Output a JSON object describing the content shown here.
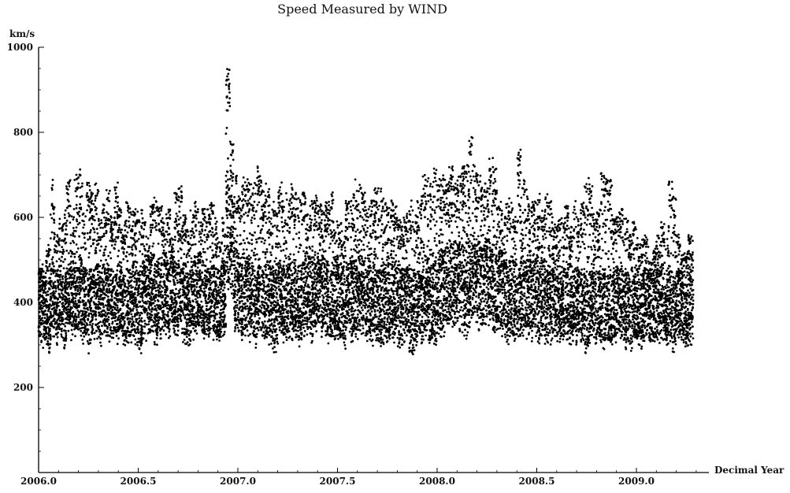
{
  "chart_data": {
    "type": "scatter",
    "title": "Speed Measured by WIND",
    "xlabel": "Decimal Year",
    "ylabel": "km/s",
    "xlim": [
      2006.0,
      2009.3
    ],
    "ylim": [
      0,
      1000
    ],
    "x_ticks": [
      "2006.0",
      "2006.5",
      "2007.0",
      "2007.5",
      "2008.0",
      "2008.5",
      "2009.0"
    ],
    "y_ticks": [
      "200",
      "400",
      "600",
      "800",
      "1000"
    ],
    "grid": false,
    "legend": "none",
    "marker_color": "#000000",
    "series": [
      {
        "x": [
          2006.0,
          2006.02,
          2006.04,
          2006.06,
          2006.08,
          2006.1,
          2006.12,
          2006.14,
          2006.16,
          2006.18,
          2006.2,
          2006.22,
          2006.24,
          2006.26,
          2006.28,
          2006.3,
          2006.32,
          2006.34,
          2006.36,
          2006.38,
          2006.4,
          2006.42,
          2006.44,
          2006.46,
          2006.48,
          2006.5,
          2006.52,
          2006.54,
          2006.56,
          2006.58,
          2006.6,
          2006.62,
          2006.64,
          2006.66,
          2006.68,
          2006.7,
          2006.72,
          2006.74,
          2006.76,
          2006.78,
          2006.8,
          2006.82,
          2006.84,
          2006.86,
          2006.88,
          2006.9,
          2006.92,
          2006.94,
          2006.96,
          2006.98,
          2007.0,
          2007.02,
          2007.04,
          2007.06,
          2007.08,
          2007.1,
          2007.12,
          2007.14,
          2007.16,
          2007.18,
          2007.2,
          2007.22,
          2007.24,
          2007.26,
          2007.28,
          2007.3,
          2007.32,
          2007.34,
          2007.36,
          2007.38,
          2007.4,
          2007.42,
          2007.44,
          2007.46,
          2007.48,
          2007.5,
          2007.52,
          2007.54,
          2007.56,
          2007.58,
          2007.6,
          2007.62,
          2007.64,
          2007.66,
          2007.68,
          2007.7,
          2007.72,
          2007.74,
          2007.76,
          2007.78,
          2007.8,
          2007.82,
          2007.84,
          2007.86,
          2007.88,
          2007.9,
          2007.92,
          2007.94,
          2007.96,
          2007.98,
          2008.0,
          2008.02,
          2008.04,
          2008.06,
          2008.08,
          2008.1,
          2008.12,
          2008.14,
          2008.16,
          2008.18,
          2008.2,
          2008.22,
          2008.24,
          2008.26,
          2008.28,
          2008.3,
          2008.32,
          2008.34,
          2008.36,
          2008.38,
          2008.4,
          2008.42,
          2008.44,
          2008.46,
          2008.48,
          2008.5,
          2008.52,
          2008.54,
          2008.56,
          2008.58,
          2008.6,
          2008.62,
          2008.64,
          2008.66,
          2008.68,
          2008.7,
          2008.72,
          2008.74,
          2008.76,
          2008.78,
          2008.8,
          2008.82,
          2008.84,
          2008.86,
          2008.88,
          2008.9,
          2008.92,
          2008.94,
          2008.96,
          2008.98,
          2009.0,
          2009.02,
          2009.04,
          2009.06,
          2009.08,
          2009.1,
          2009.12,
          2009.14,
          2009.16,
          2009.18,
          2009.2,
          2009.22,
          2009.24,
          2009.26,
          2009.28
        ],
        "y_min": [
          300,
          290,
          280,
          320,
          300,
          310,
          290,
          330,
          300,
          320,
          310,
          300,
          280,
          300,
          310,
          290,
          320,
          300,
          300,
          290,
          310,
          290,
          300,
          300,
          290,
          280,
          300,
          310,
          320,
          300,
          310,
          320,
          300,
          330,
          300,
          310,
          300,
          290,
          300,
          310,
          320,
          300,
          300,
          310,
          300,
          300,
          320,
          420,
          400,
          330,
          310,
          300,
          320,
          300,
          290,
          310,
          300,
          300,
          290,
          280,
          300,
          300,
          310,
          290,
          300,
          290,
          300,
          310,
          300,
          320,
          330,
          310,
          300,
          300,
          310,
          300,
          290,
          320,
          300,
          310,
          310,
          320,
          300,
          290,
          300,
          280,
          300,
          290,
          310,
          300,
          280,
          300,
          310,
          260,
          280,
          300,
          300,
          310,
          290,
          300,
          310,
          310,
          320,
          330,
          340,
          330,
          320,
          310,
          340,
          350,
          330,
          320,
          340,
          330,
          310,
          330,
          320,
          300,
          310,
          300,
          300,
          320,
          310,
          300,
          320,
          300,
          310,
          300,
          300,
          310,
          300,
          300,
          290,
          300,
          300,
          310,
          300,
          280,
          300,
          290,
          300,
          290,
          290,
          280,
          300,
          300,
          300,
          290,
          280,
          290,
          300,
          290,
          300,
          300,
          290,
          300,
          310,
          290,
          300,
          280,
          300,
          300,
          290,
          300,
          310
        ],
        "y_max": [
          480,
          500,
          540,
          690,
          560,
          600,
          620,
          690,
          620,
          700,
          720,
          610,
          690,
          660,
          680,
          600,
          640,
          670,
          620,
          690,
          630,
          600,
          640,
          620,
          620,
          620,
          600,
          560,
          630,
          650,
          640,
          600,
          620,
          560,
          660,
          680,
          610,
          580,
          620,
          640,
          600,
          620,
          620,
          640,
          600,
          560,
          600,
          960,
          780,
          700,
          650,
          700,
          690,
          680,
          720,
          720,
          680,
          680,
          640,
          620,
          690,
          640,
          660,
          680,
          660,
          650,
          660,
          620,
          650,
          660,
          640,
          620,
          640,
          670,
          610,
          590,
          570,
          640,
          650,
          690,
          680,
          660,
          620,
          640,
          670,
          670,
          650,
          640,
          640,
          630,
          610,
          600,
          620,
          640,
          610,
          640,
          700,
          700,
          690,
          720,
          690,
          700,
          690,
          720,
          680,
          700,
          720,
          730,
          790,
          740,
          700,
          680,
          680,
          750,
          720,
          640,
          620,
          640,
          650,
          620,
          760,
          700,
          680,
          640,
          640,
          660,
          620,
          660,
          640,
          600,
          600,
          620,
          630,
          580,
          640,
          600,
          640,
          680,
          700,
          610,
          620,
          720,
          700,
          690,
          600,
          620,
          620,
          600,
          560,
          590,
          560,
          550,
          560,
          500,
          530,
          560,
          590,
          560,
          690,
          650,
          560,
          520,
          520,
          560,
          550
        ],
        "y_base": [
          400,
          380,
          370,
          420,
          400,
          410,
          390,
          420,
          400,
          410,
          420,
          400,
          390,
          400,
          410,
          390,
          410,
          400,
          400,
          390,
          410,
          390,
          400,
          410,
          400,
          390,
          410,
          420,
          430,
          410,
          420,
          430,
          400,
          440,
          410,
          420,
          410,
          390,
          410,
          420,
          430,
          410,
          400,
          410,
          400,
          400,
          420,
          560,
          540,
          450,
          420,
          410,
          420,
          410,
          390,
          410,
          400,
          410,
          400,
          390,
          410,
          410,
          410,
          390,
          410,
          400,
          410,
          420,
          410,
          420,
          430,
          420,
          410,
          400,
          420,
          410,
          400,
          420,
          410,
          420,
          420,
          430,
          410,
          400,
          410,
          390,
          410,
          400,
          420,
          410,
          390,
          400,
          410,
          370,
          390,
          400,
          400,
          420,
          400,
          410,
          420,
          430,
          440,
          450,
          460,
          450,
          440,
          430,
          460,
          470,
          450,
          440,
          460,
          450,
          430,
          450,
          440,
          410,
          420,
          410,
          400,
          430,
          420,
          410,
          430,
          410,
          420,
          400,
          400,
          420,
          400,
          400,
          390,
          410,
          400,
          410,
          400,
          380,
          400,
          390,
          400,
          390,
          390,
          380,
          400,
          400,
          400,
          390,
          380,
          390,
          400,
          390,
          400,
          400,
          390,
          400,
          410,
          390,
          400,
          380,
          400,
          400,
          390,
          400,
          410
        ]
      }
    ]
  }
}
